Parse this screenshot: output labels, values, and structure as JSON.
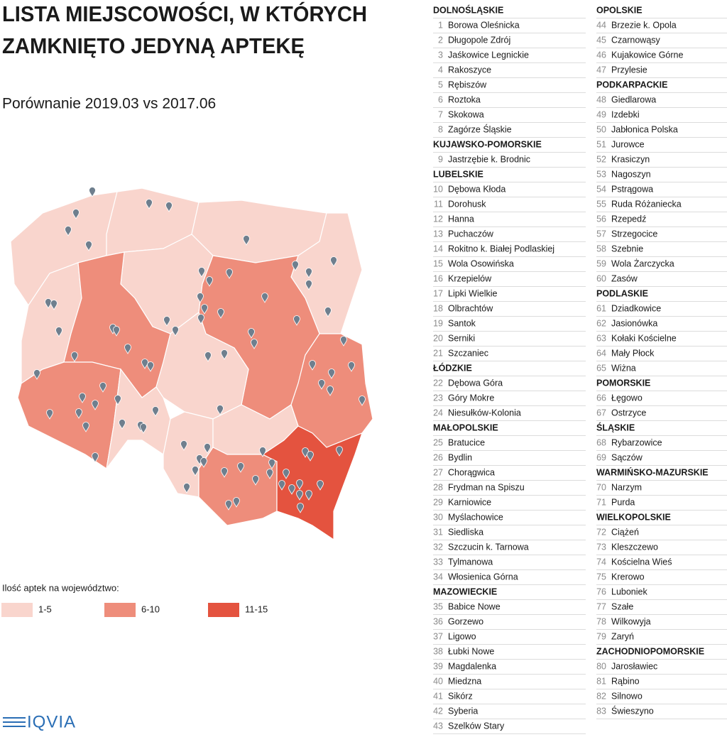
{
  "header": {
    "title_lines": [
      "LISTA MIEJSCOWOŚCI, W KTÓRYCH",
      "ZAMKNIĘTO JEDYNĄ APTEKĘ"
    ],
    "subtitle": "Porównanie 2019.03 vs 2017.06"
  },
  "legend": {
    "title": "Ilość aptek na województwo:",
    "items": [
      {
        "label": "1-5",
        "color": "#f9d5cd"
      },
      {
        "label": "6-10",
        "color": "#ee8d7b"
      },
      {
        "label": "11-15",
        "color": "#e4533f"
      }
    ]
  },
  "list": {
    "columns": [
      [
        {
          "region": "DOLNOŚLĄSKIE",
          "towns": [
            {
              "no": 1,
              "name": "Borowa Oleśnicka"
            },
            {
              "no": 2,
              "name": "Długopole Zdrój"
            },
            {
              "no": 3,
              "name": "Jaśkowice Legnickie"
            },
            {
              "no": 4,
              "name": "Rakoszyce"
            },
            {
              "no": 5,
              "name": "Rębiszów"
            },
            {
              "no": 6,
              "name": "Roztoka"
            },
            {
              "no": 7,
              "name": "Skokowa"
            },
            {
              "no": 8,
              "name": "Zagórze Śląskie"
            }
          ]
        },
        {
          "region": "KUJAWSKO-POMORSKIE",
          "towns": [
            {
              "no": 9,
              "name": "Jastrzębie k. Brodnic"
            }
          ]
        },
        {
          "region": "LUBELSKIE",
          "towns": [
            {
              "no": 10,
              "name": "Dębowa Kłoda"
            },
            {
              "no": 11,
              "name": "Dorohusk"
            },
            {
              "no": 12,
              "name": "Hanna"
            },
            {
              "no": 13,
              "name": "Puchaczów"
            },
            {
              "no": 14,
              "name": "Rokitno k. Białej Podlaskiej"
            },
            {
              "no": 15,
              "name": "Wola Osowińska"
            },
            {
              "no": 16,
              "name": "Krzepielów"
            },
            {
              "no": 17,
              "name": "Lipki Wielkie"
            },
            {
              "no": 18,
              "name": "Olbrachtów"
            },
            {
              "no": 19,
              "name": "Santok"
            },
            {
              "no": 20,
              "name": "Serniki"
            },
            {
              "no": 21,
              "name": "Szczaniec"
            }
          ]
        },
        {
          "region": "ŁÓDZKIE",
          "towns": [
            {
              "no": 22,
              "name": "Dębowa Góra"
            },
            {
              "no": 23,
              "name": "Góry Mokre"
            },
            {
              "no": 24,
              "name": "Niesułków-Kolonia"
            }
          ]
        },
        {
          "region": "MAŁOPOLSKIE",
          "towns": [
            {
              "no": 25,
              "name": "Bratucice"
            },
            {
              "no": 26,
              "name": "Bydlin"
            },
            {
              "no": 27,
              "name": "Chorągwica"
            },
            {
              "no": 28,
              "name": "Frydman na Spiszu"
            },
            {
              "no": 29,
              "name": "Karniowice"
            },
            {
              "no": 30,
              "name": "Myślachowice"
            },
            {
              "no": 31,
              "name": "Siedliska"
            },
            {
              "no": 32,
              "name": "Szczucin k. Tarnowa"
            },
            {
              "no": 33,
              "name": "Tylmanowa"
            },
            {
              "no": 34,
              "name": "Włosienica Górna"
            }
          ]
        },
        {
          "region": "MAZOWIECKIE",
          "towns": [
            {
              "no": 35,
              "name": "Babice Nowe"
            },
            {
              "no": 36,
              "name": "Gorzewo"
            },
            {
              "no": 37,
              "name": "Ligowo"
            },
            {
              "no": 38,
              "name": "Łubki Nowe"
            },
            {
              "no": 39,
              "name": "Magdalenka"
            },
            {
              "no": 40,
              "name": "Miedzna"
            },
            {
              "no": 41,
              "name": "Sikórz"
            },
            {
              "no": 42,
              "name": "Syberia"
            },
            {
              "no": 43,
              "name": "Szelków Stary"
            }
          ]
        }
      ],
      [
        {
          "region": "OPOLSKIE",
          "towns": [
            {
              "no": 44,
              "name": "Brzezie k. Opola"
            },
            {
              "no": 45,
              "name": "Czarnowąsy"
            },
            {
              "no": 46,
              "name": "Kujakowice Górne"
            },
            {
              "no": 47,
              "name": "Przylesie"
            }
          ]
        },
        {
          "region": "PODKARPACKIE",
          "towns": [
            {
              "no": 48,
              "name": "Giedlarowa"
            },
            {
              "no": 49,
              "name": "Izdebki"
            },
            {
              "no": 50,
              "name": "Jabłonica Polska"
            },
            {
              "no": 51,
              "name": "Jurowce"
            },
            {
              "no": 52,
              "name": "Krasiczyn"
            },
            {
              "no": 53,
              "name": "Nagoszyn"
            },
            {
              "no": 54,
              "name": "Pstrągowa"
            },
            {
              "no": 55,
              "name": "Ruda Różaniecka"
            },
            {
              "no": 56,
              "name": "Rzepedź"
            },
            {
              "no": 57,
              "name": "Strzegocice"
            },
            {
              "no": 58,
              "name": "Szebnie"
            },
            {
              "no": 59,
              "name": "Wola Żarczycka"
            },
            {
              "no": 60,
              "name": "Zasów"
            }
          ]
        },
        {
          "region": "PODLASKIE",
          "towns": [
            {
              "no": 61,
              "name": "Dziadkowice"
            },
            {
              "no": 62,
              "name": "Jasionówka"
            },
            {
              "no": 63,
              "name": "Kołaki Kościelne"
            },
            {
              "no": 64,
              "name": "Mały Płock"
            },
            {
              "no": 65,
              "name": "Wiżna"
            }
          ]
        },
        {
          "region": "POMORSKIE",
          "towns": [
            {
              "no": 66,
              "name": "Łęgowo"
            },
            {
              "no": 67,
              "name": "Ostrzyce"
            }
          ]
        },
        {
          "region": "ŚLĄSKIE",
          "towns": [
            {
              "no": 68,
              "name": "Rybarzowice"
            },
            {
              "no": 69,
              "name": "Sączów"
            }
          ]
        },
        {
          "region": "WARMIŃSKO-MAZURSKIE",
          "towns": [
            {
              "no": 70,
              "name": "Narzym"
            },
            {
              "no": 71,
              "name": "Purda"
            }
          ]
        },
        {
          "region": "WIELKOPOLSKIE",
          "towns": [
            {
              "no": 72,
              "name": "Ciążeń"
            },
            {
              "no": 73,
              "name": "Kleszczewo"
            },
            {
              "no": 74,
              "name": "Kościelna Wieś"
            },
            {
              "no": 75,
              "name": "Krerowo"
            },
            {
              "no": 76,
              "name": "Luboniek"
            },
            {
              "no": 77,
              "name": "Szałe"
            },
            {
              "no": 78,
              "name": "Wilkowyja"
            },
            {
              "no": 79,
              "name": "Zaryń"
            }
          ]
        },
        {
          "region": "ZACHODNIOPOMORSKIE",
          "towns": [
            {
              "no": 80,
              "name": "Jarosławiec"
            },
            {
              "no": 81,
              "name": "Rąbino"
            },
            {
              "no": 82,
              "name": "Silnowo"
            },
            {
              "no": 83,
              "name": "Świeszyno"
            }
          ]
        }
      ]
    ]
  },
  "logo": "IQVIA"
}
